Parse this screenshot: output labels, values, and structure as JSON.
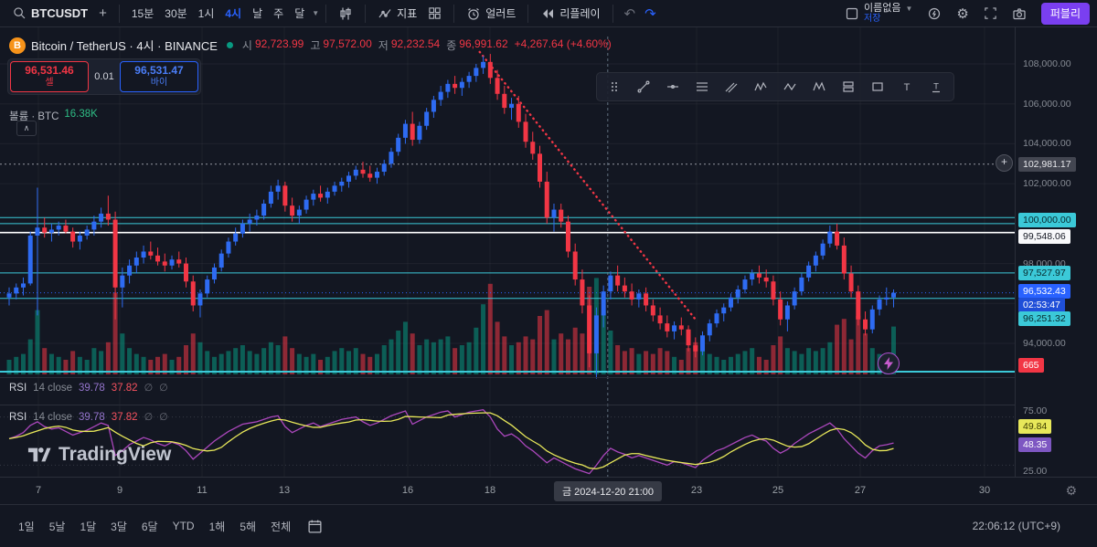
{
  "topbar": {
    "symbol": "BTCUSDT",
    "intervals": [
      {
        "label": "15분"
      },
      {
        "label": "30분"
      },
      {
        "label": "1시"
      },
      {
        "label": "4시",
        "active": true
      },
      {
        "label": "날"
      },
      {
        "label": "주"
      },
      {
        "label": "달"
      }
    ],
    "indicators_label": "지표",
    "alert_label": "얼러트",
    "replay_label": "리플레이",
    "layout_name": "이름없음",
    "save_label": "저장",
    "publish_label": "퍼블리"
  },
  "symbol_header": {
    "title": "Bitcoin / TetherUS · 4시 · BINANCE",
    "ohlc": {
      "o_label": "시",
      "o": "92,723.99",
      "h_label": "고",
      "h": "97,572.00",
      "l_label": "저",
      "l": "92,232.54",
      "c_label": "종",
      "c": "96,991.62",
      "change": "+4,267.64 (+4.60%)"
    }
  },
  "trade_panel": {
    "sell_price": "96,531.46",
    "sell_label": "셀",
    "spread": "0.01",
    "buy_price": "96,531.47",
    "buy_label": "바이"
  },
  "volume_row": {
    "label": "볼륨 · BTC",
    "value": "16.38K"
  },
  "rsi_header": {
    "title": "RSI",
    "params": "14 close",
    "value1": "39.78",
    "value2": "37.82"
  },
  "watermark": {
    "text": "TradingView"
  },
  "price_axis": {
    "labels": [
      {
        "text": "108,000.00",
        "price": 108000,
        "style": "grid"
      },
      {
        "text": "106,000.00",
        "price": 106000,
        "style": "grid"
      },
      {
        "text": "104,000.00",
        "price": 104000,
        "style": "grid"
      },
      {
        "text": "102,981.17",
        "price": 102981.17,
        "style": "dark"
      },
      {
        "text": "102,000.00",
        "price": 102000,
        "style": "grid"
      },
      {
        "text": "100,000.00",
        "price": 100000,
        "style": "cyan",
        "dy": -4
      },
      {
        "text": "99,548.06",
        "price": 99548.06,
        "style": "white",
        "dy": 4
      },
      {
        "text": "98,000.00",
        "price": 98000,
        "style": "grid"
      },
      {
        "text": "97,527.97",
        "price": 97527.97,
        "style": "cyan"
      },
      {
        "text": "96,532.43",
        "price": 96532.43,
        "style": "blue",
        "dy": -2
      },
      {
        "text": "02:53:47",
        "price": 96532.43,
        "style": "countdown",
        "dy": 13
      },
      {
        "text": "96,251.32",
        "price": 96251.32,
        "style": "cyan",
        "dy": 22
      },
      {
        "text": "94,000.00",
        "price": 94000,
        "style": "grid"
      },
      {
        "text": "665",
        "price": 92900,
        "style": "red"
      }
    ],
    "rsi_labels": [
      {
        "text": "75.00",
        "value": 75,
        "style": "grid"
      },
      {
        "text": "49.84",
        "value": 49.84,
        "style": "yellow",
        "dy": -16
      },
      {
        "text": "48.35",
        "value": 48.35,
        "style": "purple",
        "dy": 2
      },
      {
        "text": "25.00",
        "value": 25,
        "style": "grid"
      }
    ]
  },
  "time_axis": {
    "ticks": [
      {
        "label": "7",
        "x": 42
      },
      {
        "label": "9",
        "x": 131
      },
      {
        "label": "11",
        "x": 221
      },
      {
        "label": "13",
        "x": 311
      },
      {
        "label": "16",
        "x": 446
      },
      {
        "label": "18",
        "x": 536
      },
      {
        "label": "23",
        "x": 762
      },
      {
        "label": "25",
        "x": 851
      },
      {
        "label": "27",
        "x": 941
      },
      {
        "label": "30",
        "x": 1077
      }
    ],
    "date_chip": "금 2024-12-20 21:00"
  },
  "bottom_bar": {
    "ranges": [
      "1일",
      "5날",
      "1달",
      "3달",
      "6달",
      "YTD",
      "1해",
      "5해",
      "전체"
    ],
    "clock": "22:06:12 (UTC+9)"
  },
  "draw_tools": [
    "drag-handle",
    "trend-line",
    "horizontal-line",
    "fib-retracement",
    "parallel-channel",
    "elliott-wave",
    "abcd-pattern",
    "xabcd-pattern",
    "long-position",
    "rectangle",
    "text",
    "anchored-text"
  ],
  "colors": {
    "up": "#2e6bf2",
    "down": "#f23645",
    "accent": "#2962ff",
    "cyan_line": "#3bc9d8",
    "vol_up": "rgba(8,153,129,0.55)",
    "vol_down": "rgba(242,54,69,0.55)",
    "rsi_line": "#ab47bc",
    "rsi_ma": "#e8e85a",
    "publish": "#7a3ff0"
  },
  "chart_data": {
    "type": "candlestick",
    "title": "Bitcoin / TetherUS 4h BINANCE",
    "ylim": [
      91500,
      108800
    ],
    "rsi_ylim": [
      25,
      75
    ],
    "candles": [
      [
        96300,
        96800,
        95900,
        96500
      ],
      [
        96500,
        97000,
        96200,
        96800
      ],
      [
        96800,
        97300,
        96400,
        97000
      ],
      [
        97000,
        99600,
        96900,
        99400
      ],
      [
        99400,
        101800,
        95400,
        99800
      ],
      [
        99800,
        100300,
        99300,
        99548
      ],
      [
        99548,
        100000,
        99100,
        99700
      ],
      [
        99700,
        100100,
        99400,
        99900
      ],
      [
        99900,
        100200,
        99500,
        99600
      ],
      [
        99600,
        99800,
        98800,
        99100
      ],
      [
        99100,
        99600,
        98700,
        99400
      ],
      [
        99400,
        99900,
        99200,
        99700
      ],
      [
        99700,
        100400,
        99400,
        100100
      ],
      [
        100100,
        100800,
        99800,
        100500
      ],
      [
        100500,
        101400,
        99900,
        100200
      ],
      [
        100200,
        100600,
        95200,
        96800
      ],
      [
        96800,
        97800,
        95800,
        97400
      ],
      [
        97400,
        98200,
        97000,
        97900
      ],
      [
        97900,
        98600,
        97500,
        98300
      ],
      [
        98300,
        98900,
        98000,
        98600
      ],
      [
        98600,
        99100,
        98200,
        98400
      ],
      [
        98400,
        98800,
        97900,
        98100
      ],
      [
        98100,
        98500,
        97600,
        97900
      ],
      [
        97900,
        98400,
        97700,
        98200
      ],
      [
        98200,
        98600,
        97800,
        98000
      ],
      [
        98000,
        98300,
        96800,
        97100
      ],
      [
        97100,
        97400,
        95600,
        95900
      ],
      [
        95900,
        96700,
        95300,
        96500
      ],
      [
        96500,
        97400,
        96300,
        97200
      ],
      [
        97200,
        98000,
        97000,
        97800
      ],
      [
        97800,
        98700,
        97600,
        98500
      ],
      [
        98500,
        99300,
        98300,
        99100
      ],
      [
        99100,
        99800,
        98900,
        99500
      ],
      [
        99500,
        100200,
        99300,
        100000
      ],
      [
        100000,
        100500,
        99600,
        100200
      ],
      [
        100200,
        100700,
        99900,
        100400
      ],
      [
        100400,
        101200,
        100200,
        101000
      ],
      [
        101000,
        101900,
        100800,
        101600
      ],
      [
        101600,
        102200,
        101200,
        101900
      ],
      [
        101900,
        102100,
        100600,
        100900
      ],
      [
        100900,
        101300,
        100100,
        100400
      ],
      [
        100400,
        100900,
        100000,
        100700
      ],
      [
        100700,
        101400,
        100500,
        101200
      ],
      [
        101200,
        101700,
        100900,
        101500
      ],
      [
        101500,
        101900,
        101100,
        101300
      ],
      [
        101300,
        101800,
        101000,
        101600
      ],
      [
        101600,
        102100,
        101400,
        101900
      ],
      [
        101900,
        102300,
        101600,
        102100
      ],
      [
        102100,
        102600,
        101800,
        102400
      ],
      [
        102400,
        102900,
        102200,
        102700
      ],
      [
        102700,
        103100,
        102300,
        102500
      ],
      [
        102500,
        102900,
        102100,
        102300
      ],
      [
        102300,
        102800,
        102000,
        102600
      ],
      [
        102600,
        103200,
        102400,
        103000
      ],
      [
        103000,
        103800,
        102800,
        103600
      ],
      [
        103600,
        104500,
        103400,
        104300
      ],
      [
        104300,
        105200,
        104000,
        105000
      ],
      [
        105000,
        105600,
        103900,
        104200
      ],
      [
        104200,
        105100,
        104000,
        104900
      ],
      [
        104900,
        105800,
        104700,
        105600
      ],
      [
        105600,
        106400,
        105300,
        106200
      ],
      [
        106200,
        106900,
        105900,
        106600
      ],
      [
        106600,
        107200,
        106300,
        107000
      ],
      [
        107000,
        107400,
        106500,
        106800
      ],
      [
        106800,
        107300,
        106400,
        107100
      ],
      [
        107100,
        107600,
        106800,
        107400
      ],
      [
        107400,
        108000,
        107100,
        107800
      ],
      [
        107800,
        108400,
        107500,
        108100
      ],
      [
        108100,
        108500,
        107000,
        107300
      ],
      [
        107300,
        107700,
        106200,
        106500
      ],
      [
        106500,
        106900,
        105500,
        105800
      ],
      [
        105800,
        106300,
        105200,
        106000
      ],
      [
        106000,
        106400,
        104800,
        105100
      ],
      [
        105100,
        105500,
        103800,
        104100
      ],
      [
        104100,
        104600,
        103200,
        103500
      ],
      [
        103500,
        103900,
        101800,
        102100
      ],
      [
        102100,
        102600,
        100000,
        100300
      ],
      [
        100300,
        101000,
        99600,
        100700
      ],
      [
        100700,
        101000,
        99800,
        100100
      ],
      [
        100100,
        100400,
        98300,
        98600
      ],
      [
        98600,
        99000,
        96900,
        97200
      ],
      [
        97200,
        97700,
        95500,
        95900
      ],
      [
        95900,
        96400,
        92800,
        93500
      ],
      [
        93500,
        95800,
        92232,
        95400
      ],
      [
        95400,
        96900,
        94800,
        96600
      ],
      [
        96600,
        97600,
        96200,
        97400
      ],
      [
        97400,
        97900,
        96600,
        96900
      ],
      [
        96900,
        97300,
        96300,
        96600
      ],
      [
        96600,
        97000,
        95900,
        96200
      ],
      [
        96200,
        96700,
        95800,
        96500
      ],
      [
        96500,
        96800,
        95600,
        95900
      ],
      [
        95900,
        96200,
        95100,
        95400
      ],
      [
        95400,
        95800,
        94700,
        95000
      ],
      [
        95000,
        95400,
        94300,
        94600
      ],
      [
        94600,
        95100,
        94200,
        94900
      ],
      [
        94900,
        95300,
        94400,
        94700
      ],
      [
        94700,
        94900,
        93600,
        93900
      ],
      [
        93900,
        94300,
        93300,
        93600
      ],
      [
        93600,
        94600,
        93400,
        94400
      ],
      [
        94400,
        95200,
        94100,
        95000
      ],
      [
        95000,
        95700,
        94800,
        95500
      ],
      [
        95500,
        96000,
        95100,
        95800
      ],
      [
        95800,
        96500,
        95600,
        96300
      ],
      [
        96300,
        96900,
        96000,
        96700
      ],
      [
        96700,
        97400,
        96500,
        97200
      ],
      [
        97200,
        97700,
        96900,
        97500
      ],
      [
        97500,
        97900,
        97000,
        97300
      ],
      [
        97300,
        97700,
        96800,
        97100
      ],
      [
        97100,
        97400,
        95900,
        96200
      ],
      [
        96200,
        96600,
        94900,
        95200
      ],
      [
        95200,
        96100,
        94600,
        95900
      ],
      [
        95900,
        96800,
        95700,
        96600
      ],
      [
        96600,
        97500,
        96400,
        97300
      ],
      [
        97300,
        98100,
        97100,
        97900
      ],
      [
        97900,
        98600,
        97600,
        98400
      ],
      [
        98400,
        99200,
        98200,
        99000
      ],
      [
        99000,
        99900,
        98800,
        99600
      ],
      [
        99600,
        100000,
        98700,
        98900
      ],
      [
        98900,
        99300,
        97200,
        97500
      ],
      [
        97500,
        97900,
        96300,
        96600
      ],
      [
        96600,
        96900,
        94900,
        95200
      ],
      [
        95200,
        95600,
        94400,
        94700
      ],
      [
        94700,
        95900,
        94500,
        95700
      ],
      [
        95700,
        96400,
        95400,
        96200
      ],
      [
        96200,
        96800,
        95900,
        96300
      ],
      [
        96300,
        96700,
        95800,
        96532
      ]
    ],
    "volumes": [
      5,
      6,
      7,
      12,
      22,
      9,
      7,
      6,
      5,
      8,
      6,
      5,
      9,
      8,
      11,
      28,
      14,
      9,
      7,
      6,
      5,
      6,
      7,
      5,
      6,
      10,
      14,
      11,
      8,
      6,
      7,
      8,
      9,
      10,
      8,
      7,
      9,
      11,
      10,
      13,
      9,
      7,
      6,
      7,
      5,
      6,
      8,
      9,
      8,
      9,
      7,
      6,
      7,
      10,
      12,
      15,
      18,
      14,
      10,
      12,
      11,
      12,
      13,
      9,
      10,
      11,
      16,
      24,
      31,
      18,
      13,
      10,
      11,
      13,
      12,
      20,
      22,
      12,
      14,
      12,
      16,
      14,
      30,
      33,
      22,
      15,
      10,
      8,
      9,
      7,
      8,
      7,
      9,
      8,
      6,
      5,
      9,
      11,
      8,
      7,
      6,
      5,
      6,
      7,
      8,
      9,
      6,
      5,
      10,
      13,
      9,
      8,
      7,
      9,
      8,
      9,
      11,
      17,
      19,
      12,
      20,
      14,
      9,
      7,
      5,
      16.38
    ],
    "rsi": [
      52,
      54,
      57,
      63,
      66,
      62,
      60,
      61,
      58,
      55,
      57,
      59,
      62,
      65,
      63,
      38,
      42,
      47,
      50,
      53,
      51,
      48,
      46,
      49,
      47,
      42,
      35,
      40,
      45,
      50,
      54,
      58,
      61,
      64,
      65,
      66,
      68,
      70,
      71,
      62,
      57,
      60,
      63,
      65,
      62,
      64,
      66,
      68,
      69,
      70,
      66,
      63,
      65,
      68,
      71,
      73,
      75,
      64,
      67,
      70,
      72,
      74,
      75,
      70,
      72,
      74,
      75,
      76,
      70,
      60,
      54,
      56,
      52,
      46,
      42,
      37,
      32,
      36,
      33,
      30,
      27,
      25,
      23,
      30,
      38,
      44,
      41,
      39,
      36,
      38,
      36,
      34,
      32,
      30,
      33,
      32,
      30,
      28,
      34,
      38,
      42,
      44,
      47,
      50,
      53,
      55,
      52,
      50,
      44,
      40,
      43,
      48,
      52,
      56,
      59,
      62,
      65,
      60,
      52,
      46,
      40,
      36,
      42,
      46,
      47,
      48.35
    ],
    "h_lines": [
      {
        "price": 102981.17,
        "color": "#9598a1",
        "dash": "2,3",
        "width": 1
      },
      {
        "price": 100300,
        "color": "#3bc9d8",
        "width": 1
      },
      {
        "price": 100000,
        "color": "#3bc9d8",
        "width": 1
      },
      {
        "price": 99548.06,
        "color": "#ffffff",
        "width": 1.6
      },
      {
        "price": 97527.97,
        "color": "#3bc9d8",
        "width": 1
      },
      {
        "price": 96532.43,
        "color": "#2962ff",
        "dash": "1,3",
        "width": 1
      },
      {
        "price": 96251.32,
        "color": "#3bc9d8",
        "width": 1
      },
      {
        "price": 92580,
        "color": "#3bc9d8",
        "width": 2
      }
    ],
    "trend_line": {
      "i1": 66.5,
      "p1": 108600,
      "i2": 97,
      "p2": 95200,
      "color": "#f23645"
    },
    "v_line": {
      "i": 84.6,
      "color": "#758696"
    }
  }
}
